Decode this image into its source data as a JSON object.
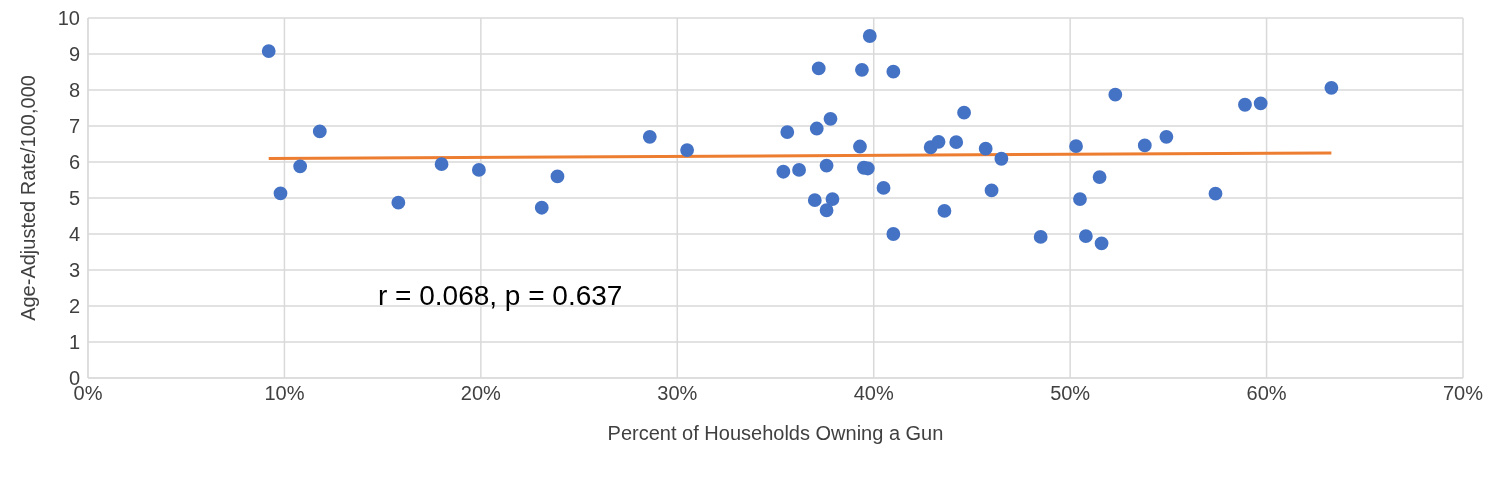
{
  "chart_data": {
    "type": "scatter",
    "xlabel": "Percent of Households Owning a Gun",
    "ylabel": "Age-Adjusted Rate/100,000",
    "annotations": [
      "r = 0.068, p = 0.637"
    ],
    "xlim": [
      0,
      70
    ],
    "xticks": [
      {
        "value": 0,
        "label": "0%"
      },
      {
        "value": 10,
        "label": "10%"
      },
      {
        "value": 20,
        "label": "20%"
      },
      {
        "value": 30,
        "label": "30%"
      },
      {
        "value": 40,
        "label": "40%"
      },
      {
        "value": 50,
        "label": "50%"
      },
      {
        "value": 60,
        "label": "60%"
      },
      {
        "value": 70,
        "label": "70%"
      }
    ],
    "ylim": [
      0,
      10
    ],
    "yticks": [
      0,
      1,
      2,
      3,
      4,
      5,
      6,
      7,
      8,
      9,
      10
    ],
    "grid": true,
    "series": [
      {
        "color": "#4472c4",
        "marker": "circle",
        "x": [
          9.2,
          9.8,
          10.8,
          11.8,
          15.8,
          18.0,
          19.9,
          23.1,
          23.9,
          28.6,
          30.5,
          35.4,
          35.6,
          36.2,
          37.0,
          37.1,
          37.2,
          37.6,
          37.6,
          37.8,
          37.9,
          39.3,
          39.4,
          39.5,
          39.7,
          39.8,
          40.5,
          41.0,
          41.0,
          42.9,
          43.3,
          43.6,
          44.2,
          44.6,
          45.7,
          46.0,
          46.5,
          48.5,
          50.3,
          50.5,
          50.8,
          51.5,
          51.6,
          52.3,
          53.8,
          54.9,
          57.4,
          58.9,
          59.7,
          63.3
        ],
        "values": [
          9.08,
          5.13,
          5.88,
          6.85,
          4.87,
          5.94,
          5.78,
          4.73,
          5.6,
          6.7,
          6.33,
          5.73,
          6.83,
          5.78,
          4.94,
          6.93,
          8.6,
          5.9,
          4.66,
          7.2,
          4.97,
          6.43,
          8.56,
          5.84,
          5.82,
          9.5,
          5.28,
          8.51,
          4.0,
          6.41,
          6.56,
          4.64,
          6.55,
          7.37,
          6.37,
          5.21,
          6.09,
          3.92,
          6.44,
          4.97,
          3.94,
          5.58,
          3.74,
          7.87,
          6.46,
          6.7,
          5.12,
          7.59,
          7.63,
          8.06
        ]
      },
      {
        "type": "line",
        "color": "#ed7d31",
        "x": [
          9.2,
          63.3
        ],
        "values": [
          6.1,
          6.25
        ]
      }
    ]
  }
}
